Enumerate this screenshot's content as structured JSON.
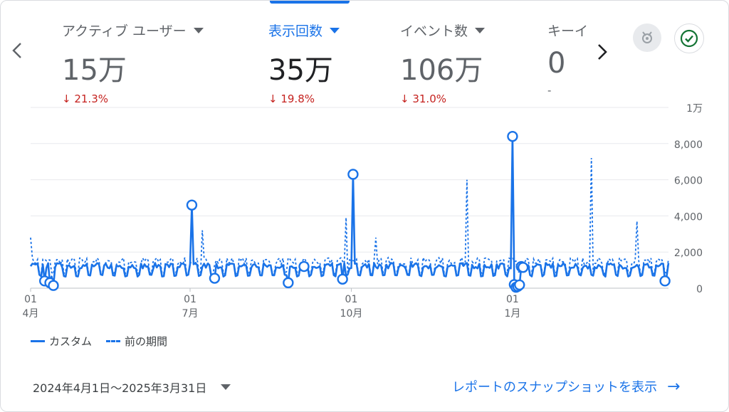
{
  "metrics": [
    {
      "label": "アクティブ ユーザー",
      "value": "15万",
      "delta": "↓ 21.3%"
    },
    {
      "label": "表示回数",
      "value": "35万",
      "delta": "↓ 19.8%"
    },
    {
      "label": "イベント数",
      "value": "106万",
      "delta": "↓ 31.0%"
    },
    {
      "label": "キーイベント",
      "value": "0",
      "delta": "-"
    }
  ],
  "nav": {
    "prev": "‹",
    "next": "›"
  },
  "icons": {
    "insights": "insights-badge-icon",
    "check": "check-circle-icon"
  },
  "colors": {
    "accent": "#1a73e8",
    "negative": "#c5221f",
    "grid": "#e8eaed"
  },
  "chart_data": {
    "type": "line",
    "y_tick_labels": [
      "0",
      "2,000",
      "4,000",
      "6,000",
      "8,000",
      "1万"
    ],
    "x_ticks": [
      {
        "day": "01",
        "month": "4月",
        "date": "2024-04-01"
      },
      {
        "day": "01",
        "month": "7月",
        "date": "2024-07-01"
      },
      {
        "day": "01",
        "month": "10月",
        "date": "2024-10-01"
      },
      {
        "day": "01",
        "month": "1月",
        "date": "2025-01-01"
      }
    ],
    "ylim": [
      0,
      10000
    ],
    "x_range": [
      "2024-04-01",
      "2025-03-31"
    ],
    "grid": true,
    "legend_position": "bottom-left",
    "series": [
      {
        "name": "カスタム",
        "style": "solid",
        "pattern": "weekly cycle between ~600 and ~1,400",
        "markers": [
          {
            "date": "2024-04-09",
            "value": 400
          },
          {
            "date": "2024-04-12",
            "value": 300
          },
          {
            "date": "2024-04-14",
            "value": 150
          },
          {
            "date": "2024-07-02",
            "value": 4600
          },
          {
            "date": "2024-07-15",
            "value": 550
          },
          {
            "date": "2024-08-26",
            "value": 300
          },
          {
            "date": "2024-09-04",
            "value": 1200
          },
          {
            "date": "2024-09-26",
            "value": 500
          },
          {
            "date": "2024-10-02",
            "value": 6300
          },
          {
            "date": "2025-01-01",
            "value": 8400
          },
          {
            "date": "2025-01-02",
            "value": 200
          },
          {
            "date": "2025-01-03",
            "value": 50
          },
          {
            "date": "2025-01-04",
            "value": 100
          },
          {
            "date": "2025-01-05",
            "value": 180
          },
          {
            "date": "2025-01-06",
            "value": 1200
          },
          {
            "date": "2025-01-07",
            "value": 1150
          },
          {
            "date": "2025-03-29",
            "value": 400
          }
        ]
      },
      {
        "name": "前の期間",
        "style": "dashed",
        "pattern": "weekly cycle between ~700 and ~1,700",
        "spikes": [
          {
            "date": "2024-04-01",
            "value": 2800
          },
          {
            "date": "2024-07-08",
            "value": 3200
          },
          {
            "date": "2024-09-28",
            "value": 3900
          },
          {
            "date": "2024-10-15",
            "value": 2800
          },
          {
            "date": "2024-12-06",
            "value": 6000
          },
          {
            "date": "2025-02-15",
            "value": 7200
          },
          {
            "date": "2025-03-13",
            "value": 3700
          }
        ]
      }
    ],
    "legend": [
      "カスタム",
      "前の期間"
    ]
  },
  "footer": {
    "date_range": "2024年4月1日～2025年3月31日",
    "report_link": "レポートのスナップショットを表示",
    "report_arrow": "→"
  }
}
